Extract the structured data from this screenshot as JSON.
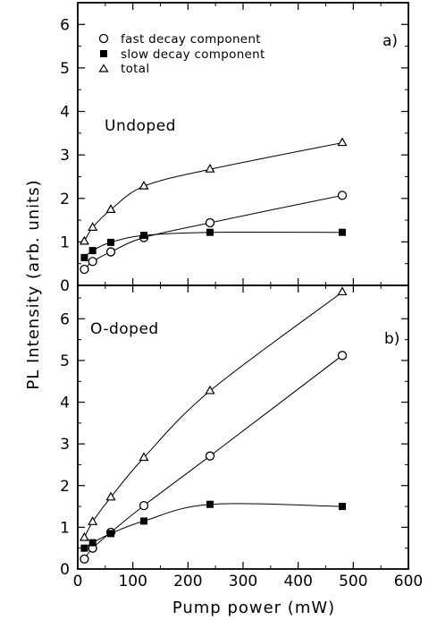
{
  "chart_data": [
    {
      "type": "scatter",
      "panel_tag": "a)",
      "sample_label": "Undoped",
      "xlim": [
        0,
        600
      ],
      "ylim": [
        0,
        6.5
      ],
      "x_ticks": [
        0,
        100,
        200,
        300,
        400,
        500,
        600
      ],
      "y_ticks": [
        0,
        1,
        2,
        3,
        4,
        5,
        6
      ],
      "legend": {
        "placement": "top-left",
        "entries": [
          {
            "marker": "circle-open",
            "label": "fast decay component"
          },
          {
            "marker": "square-filled",
            "label": "slow decay component"
          },
          {
            "marker": "triangle-open",
            "label": "total"
          }
        ]
      },
      "series": [
        {
          "name": "fast decay component",
          "marker": "circle-open",
          "x": [
            12,
            27,
            60,
            120,
            240,
            480
          ],
          "y": [
            0.37,
            0.55,
            0.77,
            1.1,
            1.44,
            2.07
          ]
        },
        {
          "name": "slow decay component",
          "marker": "square-filled",
          "x": [
            12,
            27,
            60,
            120,
            240,
            480
          ],
          "y": [
            0.64,
            0.8,
            0.99,
            1.15,
            1.22,
            1.22
          ]
        },
        {
          "name": "total",
          "marker": "triangle-open",
          "x": [
            12,
            27,
            60,
            120,
            240,
            480
          ],
          "y": [
            1.01,
            1.33,
            1.74,
            2.28,
            2.67,
            3.28
          ]
        }
      ]
    },
    {
      "type": "scatter",
      "panel_tag": "b)",
      "sample_label": "O-doped",
      "xlim": [
        0,
        600
      ],
      "ylim": [
        0,
        6.8
      ],
      "x_ticks": [
        0,
        100,
        200,
        300,
        400,
        500,
        600
      ],
      "x_tick_labels": [
        "0",
        "100",
        "200",
        "300",
        "400",
        "500",
        "600"
      ],
      "y_ticks": [
        0,
        1,
        2,
        3,
        4,
        5,
        6
      ],
      "xlabel": "Pump power (mW)",
      "ylabel": "PL Intensity (arb. units)",
      "series": [
        {
          "name": "fast decay component",
          "marker": "circle-open",
          "x": [
            12,
            27,
            60,
            120,
            240,
            480
          ],
          "y": [
            0.24,
            0.5,
            0.88,
            1.52,
            2.71,
            5.12
          ]
        },
        {
          "name": "slow decay component",
          "marker": "square-filled",
          "x": [
            12,
            27,
            60,
            120,
            240,
            480
          ],
          "y": [
            0.5,
            0.63,
            0.85,
            1.15,
            1.55,
            1.5
          ]
        },
        {
          "name": "total",
          "marker": "triangle-open",
          "x": [
            12,
            27,
            60,
            120,
            240,
            480
          ],
          "y": [
            0.75,
            1.13,
            1.72,
            2.67,
            4.27,
            6.64
          ]
        }
      ]
    }
  ]
}
